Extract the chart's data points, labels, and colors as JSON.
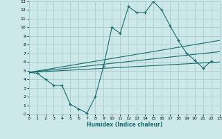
{
  "xlabel": "Humidex (Indice chaleur)",
  "bg_color": "#cce8e8",
  "grid_color": "#aacccc",
  "line_color": "#1a6b6b",
  "xlim": [
    0,
    23
  ],
  "ylim": [
    0,
    13
  ],
  "xticks": [
    0,
    1,
    2,
    3,
    4,
    5,
    6,
    7,
    8,
    9,
    10,
    11,
    12,
    13,
    14,
    15,
    16,
    17,
    18,
    19,
    20,
    21,
    22,
    23
  ],
  "yticks": [
    0,
    1,
    2,
    3,
    4,
    5,
    6,
    7,
    8,
    9,
    10,
    11,
    12,
    13
  ],
  "curve_x": [
    0,
    1,
    2,
    3,
    4,
    5,
    6,
    7,
    8,
    9,
    10,
    11,
    12,
    13,
    14,
    15,
    16,
    17,
    18,
    19,
    20,
    21,
    22
  ],
  "curve_y": [
    4.8,
    4.7,
    4.0,
    3.3,
    3.3,
    1.1,
    0.6,
    0.1,
    2.0,
    5.5,
    10.0,
    9.3,
    12.4,
    11.7,
    11.7,
    13.0,
    12.0,
    10.2,
    8.5,
    7.0,
    6.2,
    5.3,
    6.1
  ],
  "line1_x": [
    0,
    23
  ],
  "line1_y": [
    4.8,
    8.5
  ],
  "line2_x": [
    0,
    23
  ],
  "line2_y": [
    4.8,
    7.2
  ],
  "line3_x": [
    0,
    23
  ],
  "line3_y": [
    4.8,
    6.0
  ]
}
